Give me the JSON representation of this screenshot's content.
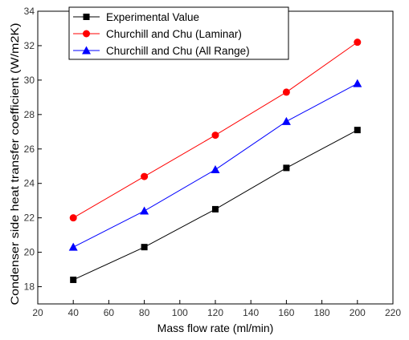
{
  "chart_data": {
    "type": "line",
    "title": "",
    "xlabel": "Mass flow rate (ml/min)",
    "ylabel": "Condenser side heat transfer coefficient (W/m2K)",
    "xlim": [
      20,
      220
    ],
    "ylim": [
      17,
      34
    ],
    "xticks": [
      20,
      40,
      60,
      80,
      100,
      120,
      140,
      160,
      180,
      200,
      220
    ],
    "yticks": [
      18,
      20,
      22,
      24,
      26,
      28,
      30,
      32,
      34
    ],
    "grid": false,
    "legend_position": "top-left",
    "x": [
      40,
      80,
      120,
      160,
      200
    ],
    "series": [
      {
        "name": "Experimental Value",
        "values": [
          18.4,
          20.3,
          22.5,
          24.9,
          27.1
        ],
        "color": "#000000",
        "marker": "square"
      },
      {
        "name": "Churchill and Chu (Laminar)",
        "values": [
          22.0,
          24.4,
          26.8,
          29.3,
          32.2
        ],
        "color": "#ff0000",
        "marker": "circle"
      },
      {
        "name": "Churchill and Chu (All Range)",
        "values": [
          20.3,
          22.4,
          24.8,
          27.6,
          29.8
        ],
        "color": "#0000ff",
        "marker": "triangle"
      }
    ]
  }
}
